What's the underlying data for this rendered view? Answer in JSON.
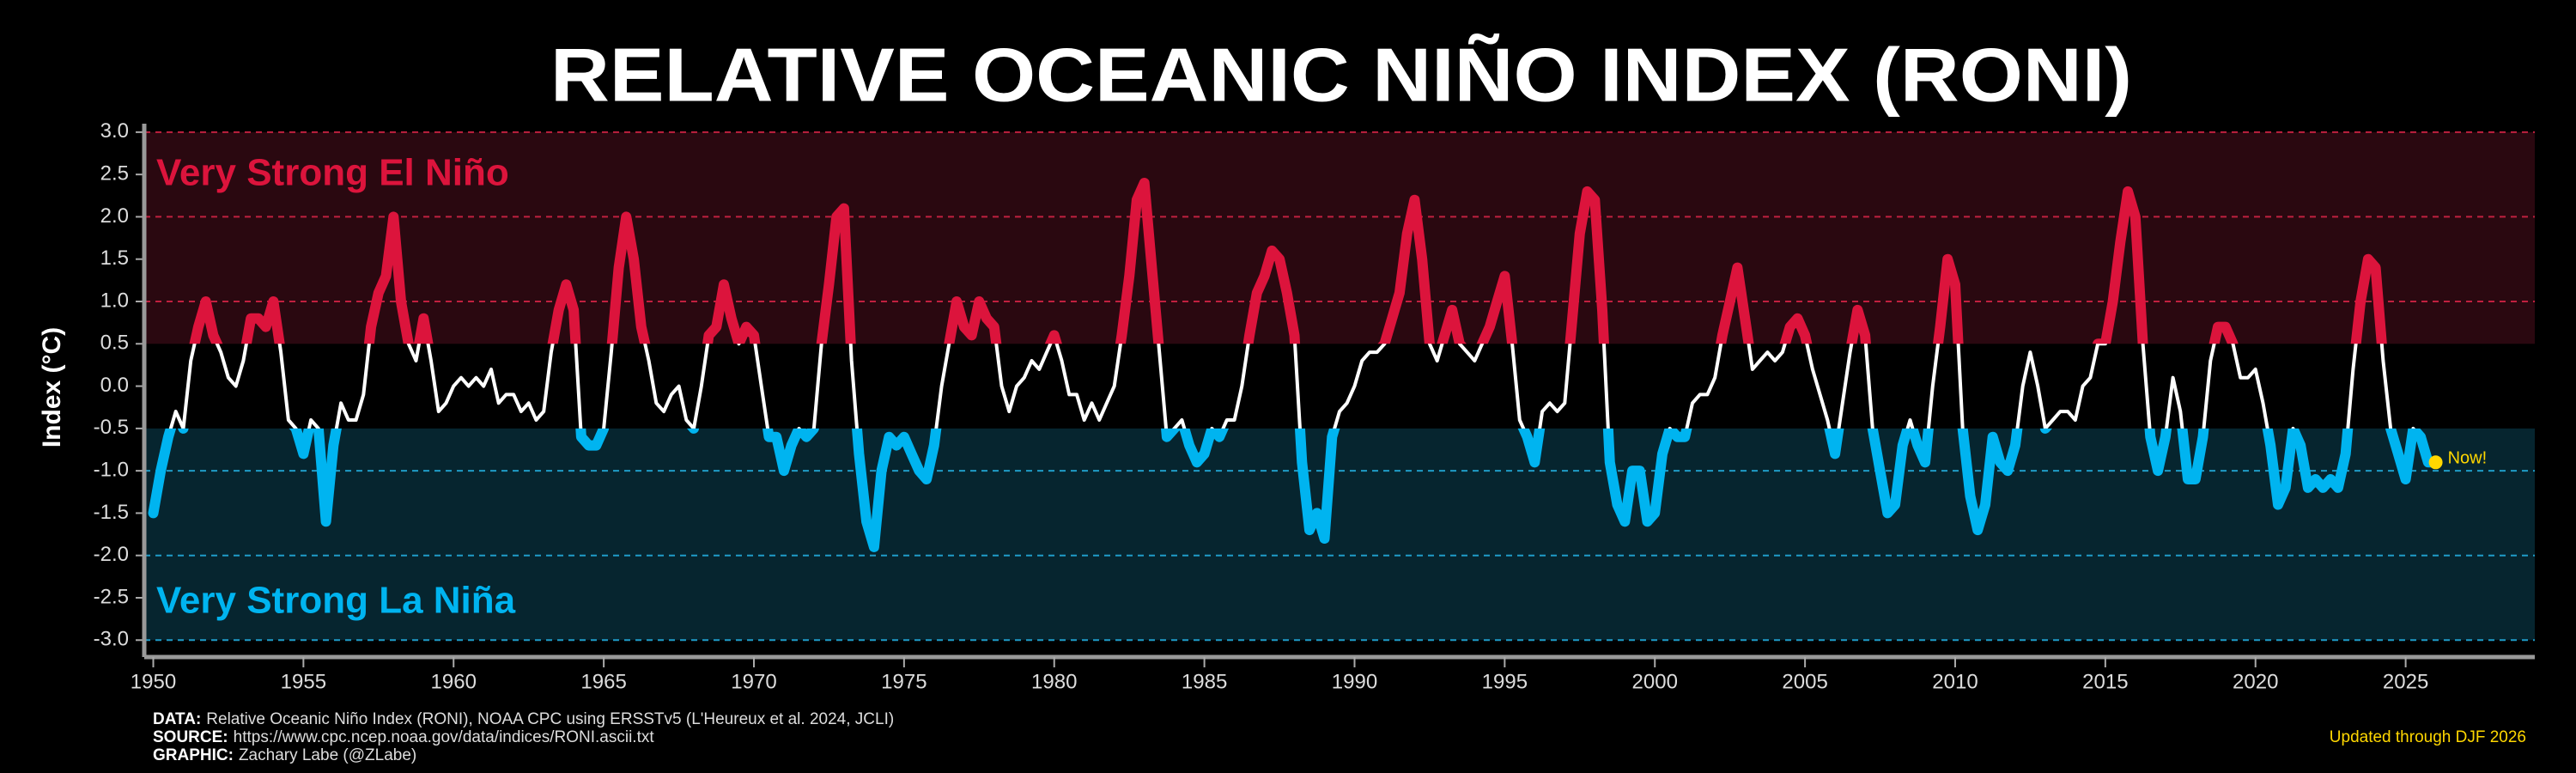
{
  "chart_data": {
    "type": "line",
    "title": "RELATIVE OCEANIC NIÑO INDEX (RONI)",
    "ylabel": "Index (°C)",
    "el_nino_label": "Very Strong El Niño",
    "la_nina_label": "Very Strong La Niña",
    "now_label": "Now!",
    "updated": "Updated through DJF 2026",
    "notes": [
      {
        "label": "DATA:",
        "text": "Relative Oceanic Niño Index (RONI), NOAA CPC using ERSSTv5 (L'Heureux et al. 2024, JCLI)"
      },
      {
        "label": "SOURCE:",
        "text": "https://www.cpc.ncep.noaa.gov/data/indices/RONI.ascii.txt"
      },
      {
        "label": "GRAPHIC:",
        "text": "Zachary Labe (@ZLabe)"
      }
    ],
    "thresholds": {
      "el_nino": 0.5,
      "la_nina": -0.5
    },
    "line_color": "#ffffff",
    "el_nino_color": "#dc143c",
    "la_nina_color": "#00b4f0",
    "now_color": "#ffd700",
    "xlim": [
      1949.7,
      2029.3
    ],
    "ylim": [
      -3.2,
      3.1
    ],
    "xticks": [
      1950,
      1955,
      1960,
      1965,
      1970,
      1975,
      1980,
      1985,
      1990,
      1995,
      2000,
      2005,
      2010,
      2015,
      2020,
      2025
    ],
    "yticks": [
      {
        "value": 3,
        "label": "3.0"
      },
      {
        "value": 2.5,
        "label": "2.5"
      },
      {
        "value": 2,
        "label": "2.0"
      },
      {
        "value": 1.5,
        "label": "1.5"
      },
      {
        "value": 1,
        "label": "1.0"
      },
      {
        "value": 0.5,
        "label": "0.5"
      },
      {
        "value": 0,
        "label": "0.0"
      },
      {
        "value": -0.5,
        "label": "-0.5"
      },
      {
        "value": -1,
        "label": "-1.0"
      },
      {
        "value": -1.5,
        "label": "-1.5"
      },
      {
        "value": -2,
        "label": "-2.0"
      },
      {
        "value": -2.5,
        "label": "-2.5"
      },
      {
        "value": -3,
        "label": "-3.0"
      }
    ],
    "x": [
      1950,
      1950.25,
      1950.5,
      1950.75,
      1951,
      1951.25,
      1951.5,
      1951.75,
      1952,
      1952.25,
      1952.5,
      1952.75,
      1953,
      1953.25,
      1953.5,
      1953.75,
      1954,
      1954.25,
      1954.5,
      1954.75,
      1955,
      1955.25,
      1955.5,
      1955.75,
      1956,
      1956.25,
      1956.5,
      1956.75,
      1957,
      1957.25,
      1957.5,
      1957.75,
      1958,
      1958.25,
      1958.5,
      1958.75,
      1959,
      1959.25,
      1959.5,
      1959.75,
      1960,
      1960.25,
      1960.5,
      1960.75,
      1961,
      1961.25,
      1961.5,
      1961.75,
      1962,
      1962.25,
      1962.5,
      1962.75,
      1963,
      1963.25,
      1963.5,
      1963.75,
      1964,
      1964.25,
      1964.5,
      1964.75,
      1965,
      1965.25,
      1965.5,
      1965.75,
      1966,
      1966.25,
      1966.5,
      1966.75,
      1967,
      1967.25,
      1967.5,
      1967.75,
      1968,
      1968.25,
      1968.5,
      1968.75,
      1969,
      1969.25,
      1969.5,
      1969.75,
      1970,
      1970.25,
      1970.5,
      1970.75,
      1971,
      1971.25,
      1971.5,
      1971.75,
      1972,
      1972.25,
      1972.5,
      1972.75,
      1973,
      1973.25,
      1973.5,
      1973.75,
      1974,
      1974.25,
      1974.5,
      1974.75,
      1975,
      1975.25,
      1975.5,
      1975.75,
      1976,
      1976.25,
      1976.5,
      1976.75,
      1977,
      1977.25,
      1977.5,
      1977.75,
      1978,
      1978.25,
      1978.5,
      1978.75,
      1979,
      1979.25,
      1979.5,
      1979.75,
      1980,
      1980.25,
      1980.5,
      1980.75,
      1981,
      1981.25,
      1981.5,
      1981.75,
      1982,
      1982.25,
      1982.5,
      1982.75,
      1983,
      1983.25,
      1983.5,
      1983.75,
      1984,
      1984.25,
      1984.5,
      1984.75,
      1985,
      1985.25,
      1985.5,
      1985.75,
      1986,
      1986.25,
      1986.5,
      1986.75,
      1987,
      1987.25,
      1987.5,
      1987.75,
      1988,
      1988.25,
      1988.5,
      1988.75,
      1989,
      1989.25,
      1989.5,
      1989.75,
      1990,
      1990.25,
      1990.5,
      1990.75,
      1991,
      1991.25,
      1991.5,
      1991.75,
      1992,
      1992.25,
      1992.5,
      1992.75,
      1993,
      1993.25,
      1993.5,
      1993.75,
      1994,
      1994.25,
      1994.5,
      1994.75,
      1995,
      1995.25,
      1995.5,
      1995.75,
      1996,
      1996.25,
      1996.5,
      1996.75,
      1997,
      1997.25,
      1997.5,
      1997.75,
      1998,
      1998.25,
      1998.5,
      1998.75,
      1999,
      1999.25,
      1999.5,
      1999.75,
      2000,
      2000.25,
      2000.5,
      2000.75,
      2001,
      2001.25,
      2001.5,
      2001.75,
      2002,
      2002.25,
      2002.5,
      2002.75,
      2003,
      2003.25,
      2003.5,
      2003.75,
      2004,
      2004.25,
      2004.5,
      2004.75,
      2005,
      2005.25,
      2005.5,
      2005.75,
      2006,
      2006.25,
      2006.5,
      2006.75,
      2007,
      2007.25,
      2007.5,
      2007.75,
      2008,
      2008.25,
      2008.5,
      2008.75,
      2009,
      2009.25,
      2009.5,
      2009.75,
      2010,
      2010.25,
      2010.5,
      2010.75,
      2011,
      2011.25,
      2011.5,
      2011.75,
      2012,
      2012.25,
      2012.5,
      2012.75,
      2013,
      2013.25,
      2013.5,
      2013.75,
      2014,
      2014.25,
      2014.5,
      2014.75,
      2015,
      2015.25,
      2015.5,
      2015.75,
      2016,
      2016.25,
      2016.5,
      2016.75,
      2017,
      2017.25,
      2017.5,
      2017.75,
      2018,
      2018.25,
      2018.5,
      2018.75,
      2019,
      2019.25,
      2019.5,
      2019.75,
      2020,
      2020.25,
      2020.5,
      2020.75,
      2021,
      2021.25,
      2021.5,
      2021.75,
      2022,
      2022.25,
      2022.5,
      2022.75,
      2023,
      2023.25,
      2023.5,
      2023.75,
      2024,
      2024.25,
      2024.5,
      2024.75,
      2025,
      2025.25,
      2025.5,
      2025.75,
      2026
    ],
    "series": [
      {
        "name": "RONI",
        "values": [
          -1.5,
          -1.0,
          -0.6,
          -0.3,
          -0.5,
          0.3,
          0.7,
          1.0,
          0.6,
          0.4,
          0.1,
          0.0,
          0.3,
          0.8,
          0.8,
          0.7,
          1.0,
          0.4,
          -0.4,
          -0.5,
          -0.8,
          -0.4,
          -0.5,
          -1.6,
          -0.7,
          -0.2,
          -0.4,
          -0.4,
          -0.1,
          0.7,
          1.1,
          1.3,
          2.0,
          1.0,
          0.5,
          0.3,
          0.8,
          0.3,
          -0.3,
          -0.2,
          0.0,
          0.1,
          0.0,
          0.1,
          0.0,
          0.2,
          -0.2,
          -0.1,
          -0.1,
          -0.3,
          -0.2,
          -0.4,
          -0.3,
          0.4,
          0.9,
          1.2,
          0.9,
          -0.6,
          -0.7,
          -0.7,
          -0.5,
          0.4,
          1.4,
          2.0,
          1.5,
          0.7,
          0.3,
          -0.2,
          -0.3,
          -0.1,
          0.0,
          -0.4,
          -0.5,
          0.0,
          0.6,
          0.7,
          1.2,
          0.8,
          0.5,
          0.7,
          0.6,
          0.0,
          -0.6,
          -0.6,
          -1.0,
          -0.7,
          -0.5,
          -0.6,
          -0.5,
          0.5,
          1.2,
          2.0,
          2.1,
          0.3,
          -0.8,
          -1.6,
          -1.9,
          -1.0,
          -0.6,
          -0.7,
          -0.6,
          -0.8,
          -1.0,
          -1.1,
          -0.7,
          0.0,
          0.5,
          1.0,
          0.7,
          0.6,
          1.0,
          0.8,
          0.7,
          0.0,
          -0.3,
          0.0,
          0.1,
          0.3,
          0.2,
          0.4,
          0.6,
          0.3,
          -0.1,
          -0.1,
          -0.4,
          -0.2,
          -0.4,
          -0.2,
          0.0,
          0.6,
          1.3,
          2.2,
          2.4,
          1.4,
          0.4,
          -0.6,
          -0.5,
          -0.4,
          -0.7,
          -0.9,
          -0.8,
          -0.5,
          -0.6,
          -0.4,
          -0.4,
          0.0,
          0.6,
          1.1,
          1.3,
          1.6,
          1.5,
          1.1,
          0.6,
          -0.9,
          -1.7,
          -1.5,
          -1.8,
          -0.6,
          -0.3,
          -0.2,
          0.0,
          0.3,
          0.4,
          0.4,
          0.5,
          0.8,
          1.1,
          1.8,
          2.2,
          1.5,
          0.5,
          0.3,
          0.6,
          0.9,
          0.5,
          0.4,
          0.3,
          0.5,
          0.7,
          1.0,
          1.3,
          0.5,
          -0.4,
          -0.6,
          -0.9,
          -0.3,
          -0.2,
          -0.3,
          -0.2,
          0.8,
          1.8,
          2.3,
          2.2,
          0.9,
          -0.9,
          -1.4,
          -1.6,
          -1.0,
          -1.0,
          -1.6,
          -1.5,
          -0.8,
          -0.5,
          -0.6,
          -0.6,
          -0.2,
          -0.1,
          -0.1,
          0.1,
          0.6,
          1.0,
          1.4,
          0.8,
          0.2,
          0.3,
          0.4,
          0.3,
          0.4,
          0.7,
          0.8,
          0.6,
          0.2,
          -0.1,
          -0.4,
          -0.8,
          -0.2,
          0.4,
          0.9,
          0.6,
          -0.5,
          -1.0,
          -1.5,
          -1.4,
          -0.7,
          -0.4,
          -0.7,
          -0.9,
          0.0,
          0.7,
          1.5,
          1.2,
          -0.5,
          -1.3,
          -1.7,
          -1.4,
          -0.6,
          -0.9,
          -1.0,
          -0.7,
          0.0,
          0.4,
          0.0,
          -0.5,
          -0.4,
          -0.3,
          -0.3,
          -0.4,
          0.0,
          0.1,
          0.5,
          0.5,
          1.0,
          1.7,
          2.3,
          2.0,
          0.5,
          -0.6,
          -1.0,
          -0.6,
          0.1,
          -0.3,
          -1.1,
          -1.1,
          -0.6,
          0.3,
          0.7,
          0.7,
          0.5,
          0.1,
          0.1,
          0.2,
          -0.2,
          -0.7,
          -1.4,
          -1.2,
          -0.5,
          -0.7,
          -1.2,
          -1.1,
          -1.2,
          -1.1,
          -1.2,
          -0.8,
          0.2,
          1.0,
          1.5,
          1.4,
          0.3,
          -0.5,
          -0.8,
          -1.1,
          -0.5,
          -0.6,
          -0.9,
          -0.9
        ]
      }
    ]
  }
}
